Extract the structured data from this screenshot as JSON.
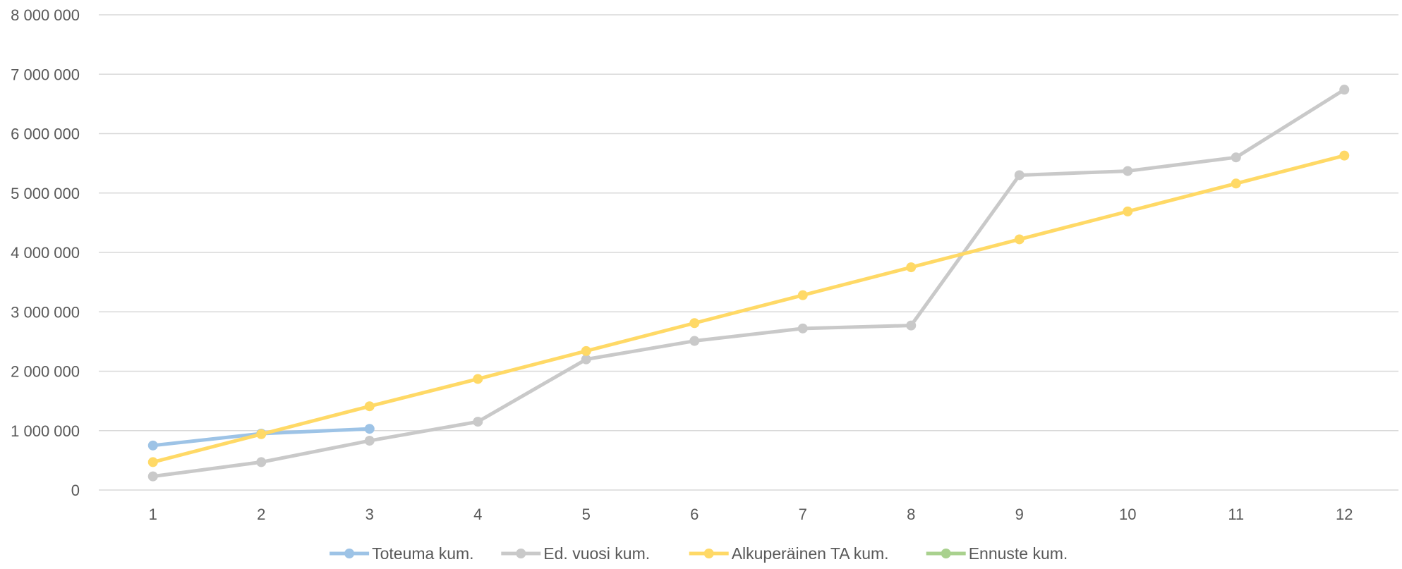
{
  "chart_data": {
    "type": "line",
    "title": "",
    "xlabel": "",
    "ylabel": "",
    "x": [
      1,
      2,
      3,
      4,
      5,
      6,
      7,
      8,
      9,
      10,
      11,
      12
    ],
    "ylim": [
      0,
      8000000
    ],
    "yticks": [
      0,
      1000000,
      2000000,
      3000000,
      4000000,
      5000000,
      6000000,
      7000000,
      8000000
    ],
    "ytick_labels": [
      "0",
      "1 000 000",
      "2 000 000",
      "3 000 000",
      "4 000 000",
      "5 000 000",
      "6 000 000",
      "7 000 000",
      "8 000 000"
    ],
    "grid": "horizontal",
    "legend_position": "bottom",
    "series": [
      {
        "name": "Toteuma kum.",
        "color": "#9DC3E6",
        "values": [
          750000,
          950000,
          1030000,
          null,
          null,
          null,
          null,
          null,
          null,
          null,
          null,
          null
        ]
      },
      {
        "name": "Ed. vuosi kum.",
        "color": "#C9C9C9",
        "values": [
          230000,
          470000,
          830000,
          1150000,
          2200000,
          2510000,
          2720000,
          2770000,
          5300000,
          5370000,
          5600000,
          6740000
        ]
      },
      {
        "name": "Alkuperäinen TA kum.",
        "color": "#FFD966",
        "values": [
          470000,
          940000,
          1410000,
          1870000,
          2340000,
          2810000,
          3280000,
          3750000,
          4220000,
          4690000,
          5160000,
          5630000
        ]
      },
      {
        "name": "Ennuste kum.",
        "color": "#A9D18E",
        "values": [
          null,
          null,
          null,
          null,
          null,
          null,
          null,
          null,
          null,
          null,
          null,
          null
        ]
      }
    ]
  }
}
